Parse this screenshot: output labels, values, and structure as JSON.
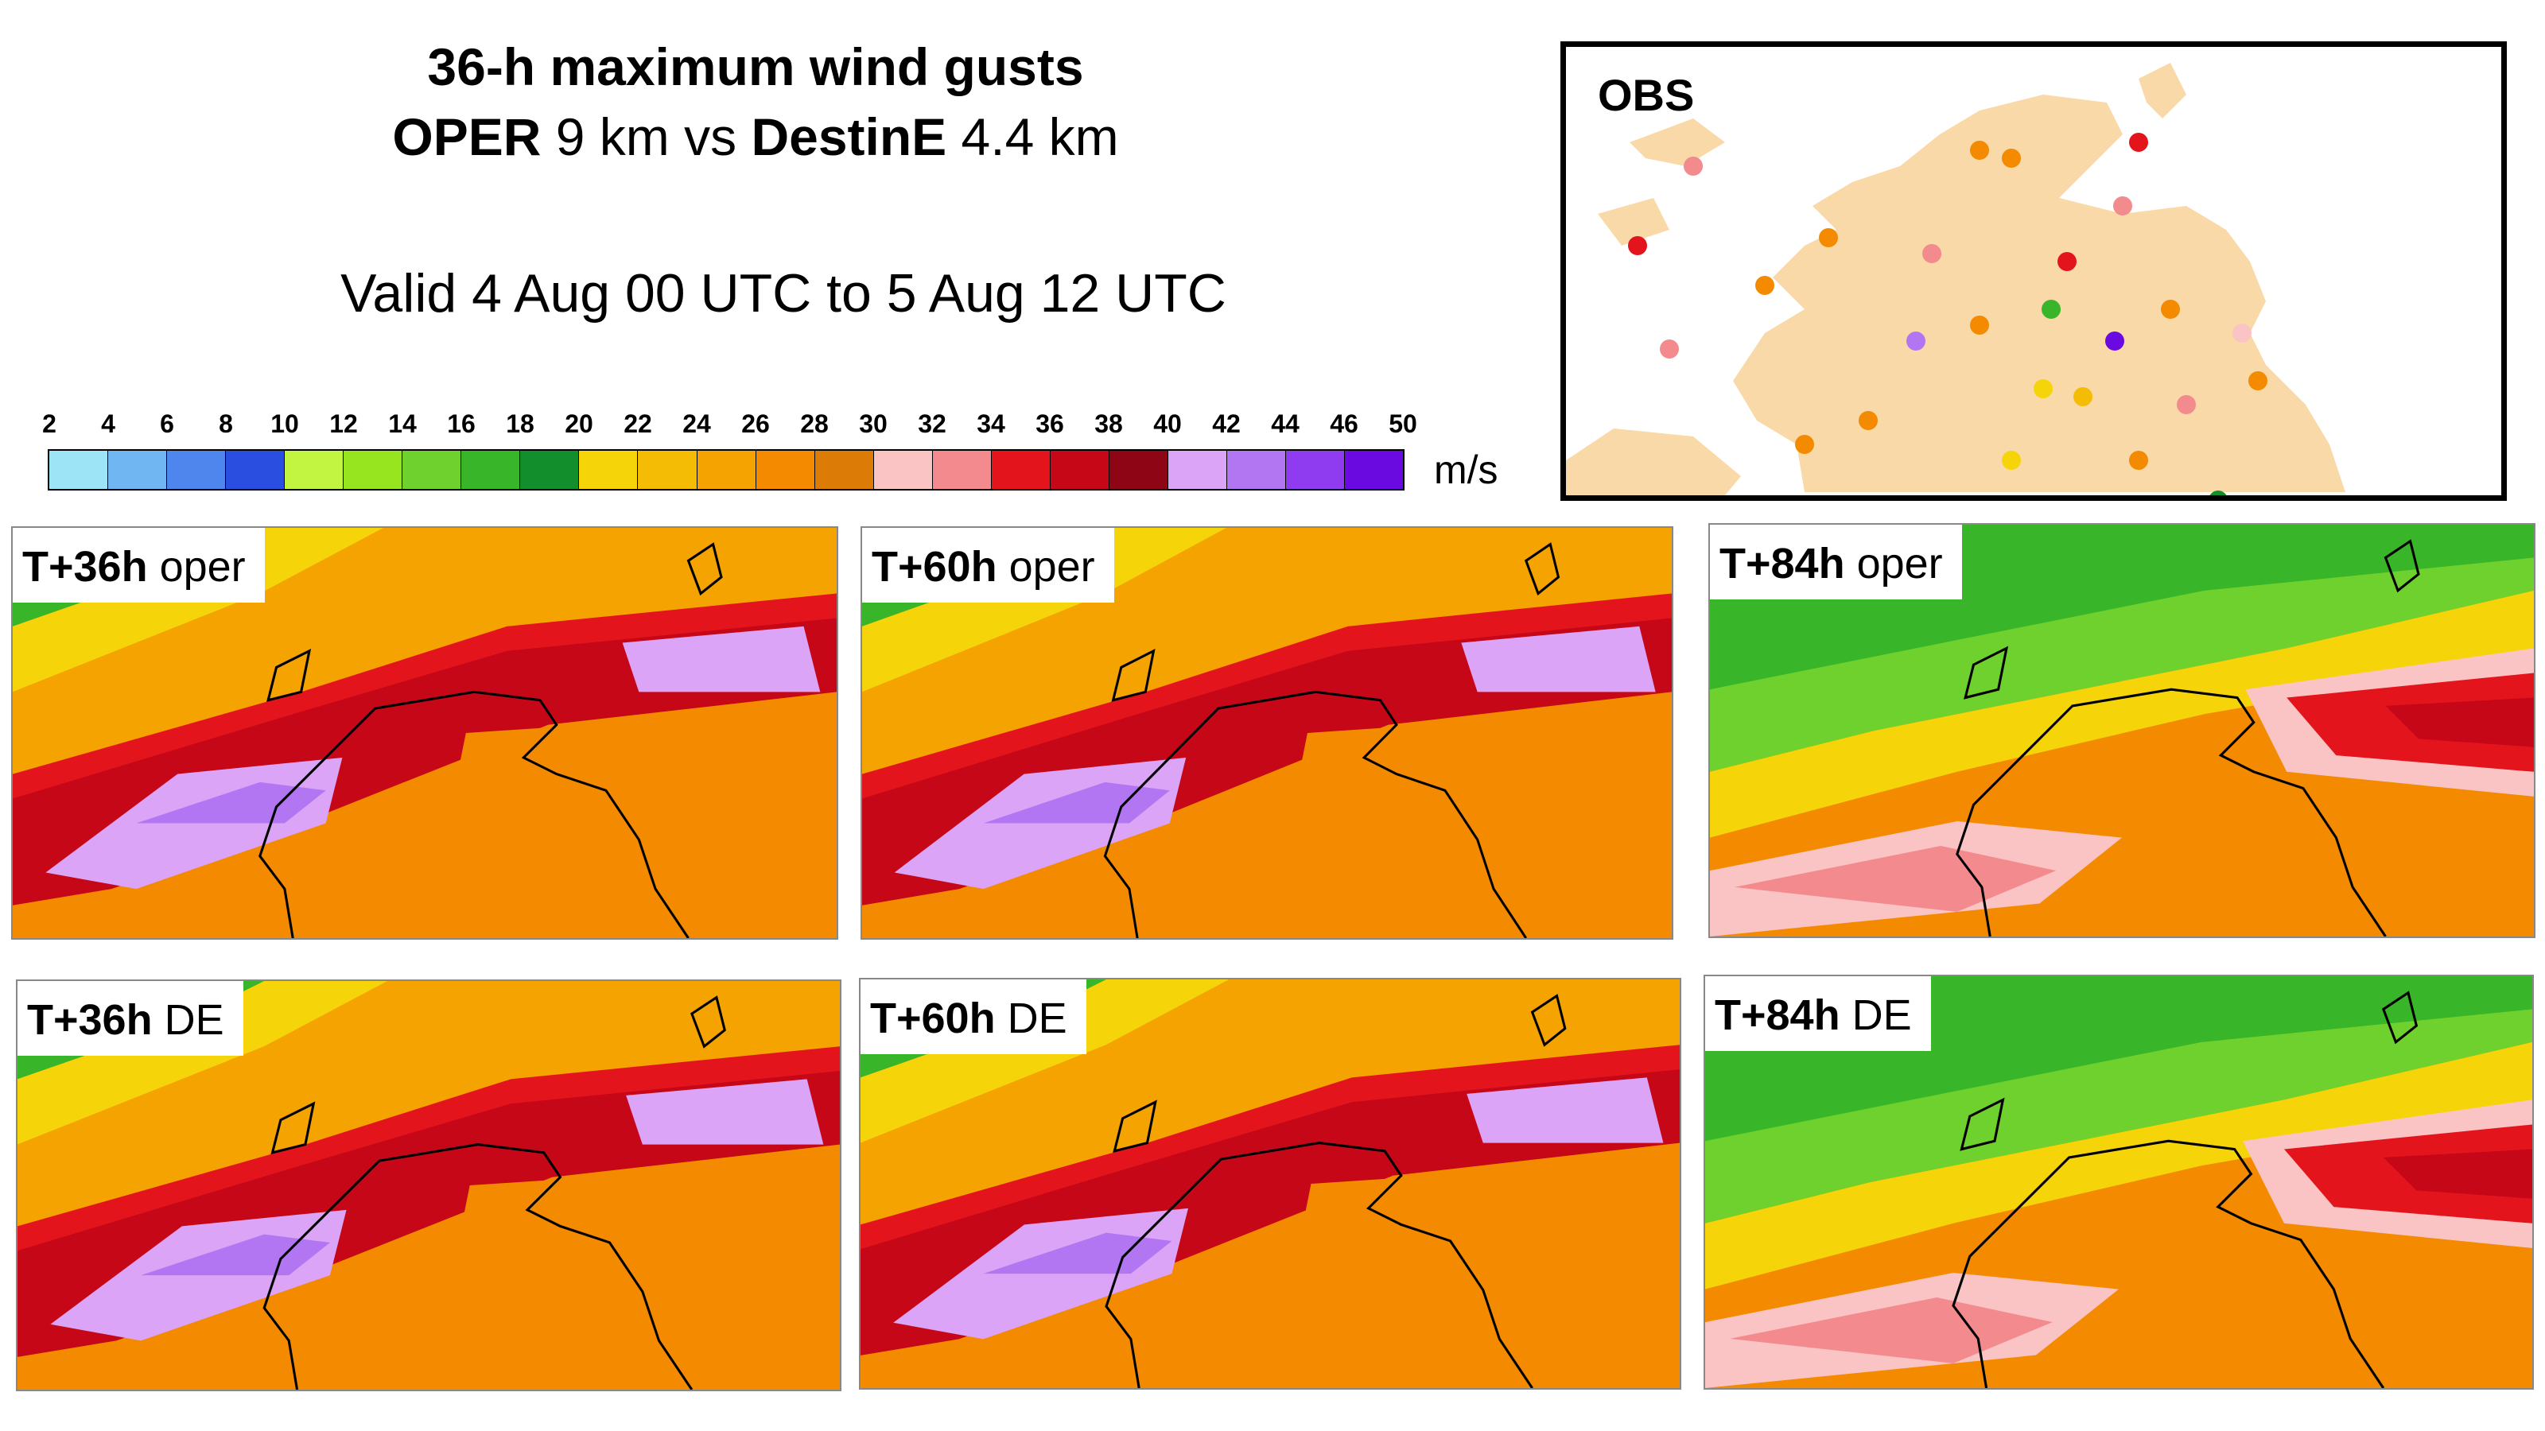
{
  "title": {
    "line1": "36-h maximum wind gusts",
    "line2": {
      "a": "OPER",
      "b": " 9 km vs ",
      "c": "DestinE",
      "d": " 4.4 km"
    },
    "valid": "Valid 4 Aug 00 UTC to 5 Aug 12 UTC"
  },
  "colorbar": {
    "ticks": [
      "2",
      "4",
      "6",
      "8",
      "10",
      "12",
      "14",
      "16",
      "18",
      "20",
      "22",
      "24",
      "26",
      "28",
      "30",
      "32",
      "34",
      "36",
      "38",
      "40",
      "42",
      "44",
      "46",
      "50"
    ],
    "colors": [
      "#9ee4f7",
      "#6fb6f2",
      "#4f86ee",
      "#2a4fe0",
      "#c2f542",
      "#96e51e",
      "#6fd12d",
      "#39b52a",
      "#138e2c",
      "#f6d40a",
      "#f5bc06",
      "#f5a300",
      "#f38a00",
      "#dd7b07",
      "#fbc4c4",
      "#f38a8d",
      "#e4141d",
      "#c50717",
      "#8e0515",
      "#dca4f6",
      "#b276f2",
      "#8f3cf0",
      "#6a0ae0"
    ],
    "units": "m/s"
  },
  "obs": {
    "label": "OBS",
    "stations": [
      {
        "color": "#e4141d"
      },
      {
        "color": "#f38a00"
      },
      {
        "color": "#f38a8d"
      },
      {
        "color": "#e4141d"
      },
      {
        "color": "#39b52a"
      },
      {
        "color": "#6a0ae0"
      },
      {
        "color": "#b276f2"
      },
      {
        "color": "#f6d40a"
      },
      {
        "color": "#138e2c"
      },
      {
        "color": "#fbc4c4"
      },
      {
        "color": "#f38a00"
      }
    ]
  },
  "panels": [
    {
      "bold": "T+36h",
      "rest": " oper"
    },
    {
      "bold": "T+60h",
      "rest": " oper"
    },
    {
      "bold": "T+84h",
      "rest": " oper"
    },
    {
      "bold": "T+36h",
      "rest": " DE"
    },
    {
      "bold": "T+60h",
      "rest": " DE"
    },
    {
      "bold": "T+84h",
      "rest": " DE"
    }
  ]
}
